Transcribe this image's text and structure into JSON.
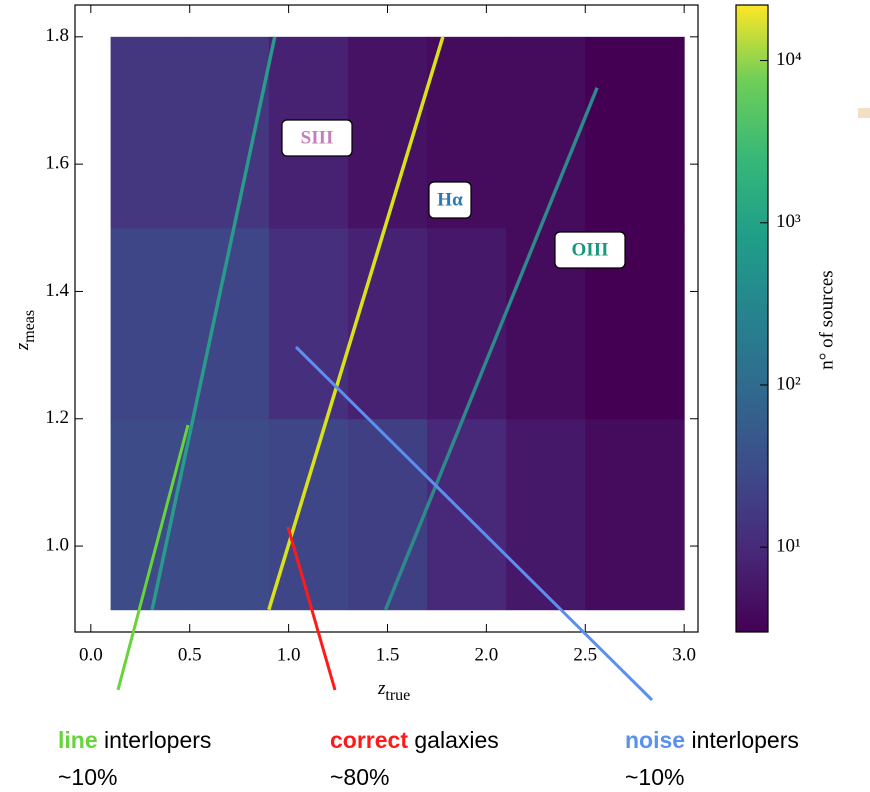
{
  "chart_data": {
    "type": "hexbin",
    "xlabel": "z",
    "xlabel_sub": "true",
    "ylabel": "z",
    "ylabel_sub": "meas",
    "xlim": [
      -0.08,
      3.07
    ],
    "xticks": [
      {
        "value": 0,
        "label": "0.0"
      },
      0.5,
      {
        "value": 1,
        "label": "1.0"
      },
      1.5,
      {
        "value": 2,
        "label": "2.0"
      },
      2.5,
      {
        "value": 3,
        "label": "3.0"
      }
    ],
    "ylim": [
      0.865,
      1.85
    ],
    "yticks": [
      {
        "value": 1,
        "label": "1.0"
      },
      1.2,
      1.4,
      1.6,
      1.8
    ],
    "bins_x": [
      0.1,
      0.5,
      0.9,
      1.3,
      1.7,
      2.1,
      2.5,
      3.0
    ],
    "bins_y": [
      0.9,
      1.2,
      1.5,
      1.8
    ],
    "counts": [
      [
        30,
        30,
        25,
        20,
        10,
        6,
        4
      ],
      [
        25,
        25,
        12,
        8,
        6,
        4,
        3
      ],
      [
        15,
        15,
        8,
        5,
        4,
        4,
        3
      ]
    ],
    "lines": [
      {
        "name": "SIII",
        "x": [
          0.31,
          0.93
        ],
        "y": [
          0.9,
          1.8
        ],
        "color": "#2a9a8a",
        "label_color": "#c77dbb"
      },
      {
        "name": "Hα",
        "x": [
          0.9,
          1.78
        ],
        "y": [
          0.9,
          1.8
        ],
        "color": "#d8e219",
        "label_color": "#2a78b4"
      },
      {
        "name": "OIII",
        "x": [
          1.49,
          2.56
        ],
        "y": [
          0.9,
          1.72
        ],
        "color": "#2c8a8a",
        "label_color": "#17977f"
      }
    ],
    "colorbar": {
      "label": "n° of sources",
      "log": true,
      "clim": [
        3,
        22000
      ],
      "ticks": [
        {
          "value": 10,
          "label": "10¹"
        },
        {
          "value": 100,
          "label": "10²"
        },
        {
          "value": 1000,
          "label": "10³"
        },
        {
          "value": 10000,
          "label": "10⁴"
        }
      ]
    },
    "annotations": [
      {
        "keyword": "line",
        "keyword_color": "#66d43a",
        "text": "interlopers",
        "share": "~10%"
      },
      {
        "keyword": "correct",
        "keyword_color": "#ff1a1a",
        "text": "galaxies",
        "share": "~80%"
      },
      {
        "keyword": "noise",
        "keyword_color": "#5b8ff0",
        "text": "interlopers",
        "share": "~10%"
      }
    ]
  }
}
